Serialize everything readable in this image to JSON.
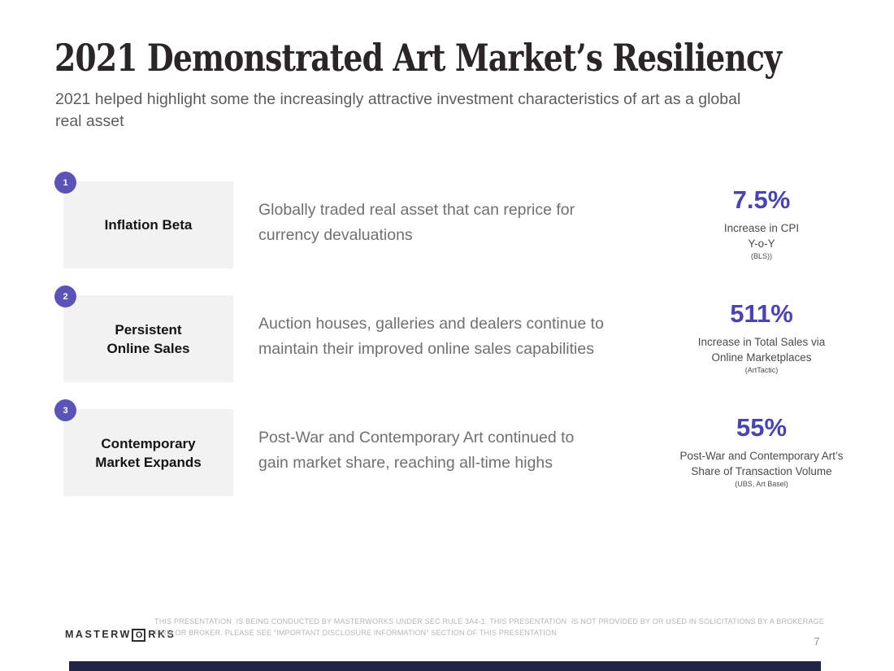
{
  "slide": {
    "title": "2021 Demonstrated Art Market’s Resiliency",
    "subtitle_lines": [
      "2021 helped highlight some the increasingly attractive investment characteristics of art as a global",
      "real asset"
    ],
    "page_number": "7"
  },
  "rows": [
    {
      "number": "1",
      "label_lines": [
        "Inflation Beta"
      ],
      "description_lines": [
        "Globally traded real asset that can reprice for",
        "currency devaluations"
      ],
      "stat": {
        "value": "7.5%",
        "caption_lines": [
          "Increase in CPI",
          "Y-o-Y"
        ],
        "source": "(BLS))"
      }
    },
    {
      "number": "2",
      "label_lines": [
        "Persistent",
        "Online Sales"
      ],
      "description_lines": [
        "Auction houses, galleries and dealers continue to",
        "maintain their improved online sales capabilities"
      ],
      "stat": {
        "value": "511%",
        "caption_lines": [
          "Increase in Total Sales via",
          "Online Marketplaces"
        ],
        "source": "(ArtTactic)"
      }
    },
    {
      "number": "3",
      "label_lines": [
        "Contemporary",
        "Market Expands"
      ],
      "description_lines": [
        "Post-War and Contemporary Art continued to",
        "gain market share, reaching all-time highs"
      ],
      "stat": {
        "value": "55%",
        "caption_lines": [
          "Post-War and Contemporary Art’s",
          "Share of Transaction Volume"
        ],
        "source": "(UBS, Art Basel)"
      }
    }
  ],
  "footer": {
    "logo": {
      "prefix": "MASTERW",
      "boxed_letter": "O",
      "suffix": "RKS"
    },
    "disclaimer_lines": [
      "THIS PRESENTATION  IS BEING CONDUCTED BY MASTERWORKS UNDER SEC RULE 3A4-1. THIS PRESENTATION  IS NOT PROVIDED BY OR USED IN SOLICITATIONS BY A BROKERAGE",
      "FIRM OR BROKER. PLEASE SEE “IMPORTANT DISCLOSURE INFORMATION” SECTION OF THIS PRESENTATION"
    ]
  },
  "colors": {
    "badge_purple": "#5b54b6",
    "stat_purple": "#4a44ac",
    "label_box_gray": "#f2f2f2",
    "title_black": "#2a2526",
    "body_gray": "#707073",
    "disclaimer_gray": "#b5b5b7",
    "bottom_bar_navy": "#212444"
  }
}
